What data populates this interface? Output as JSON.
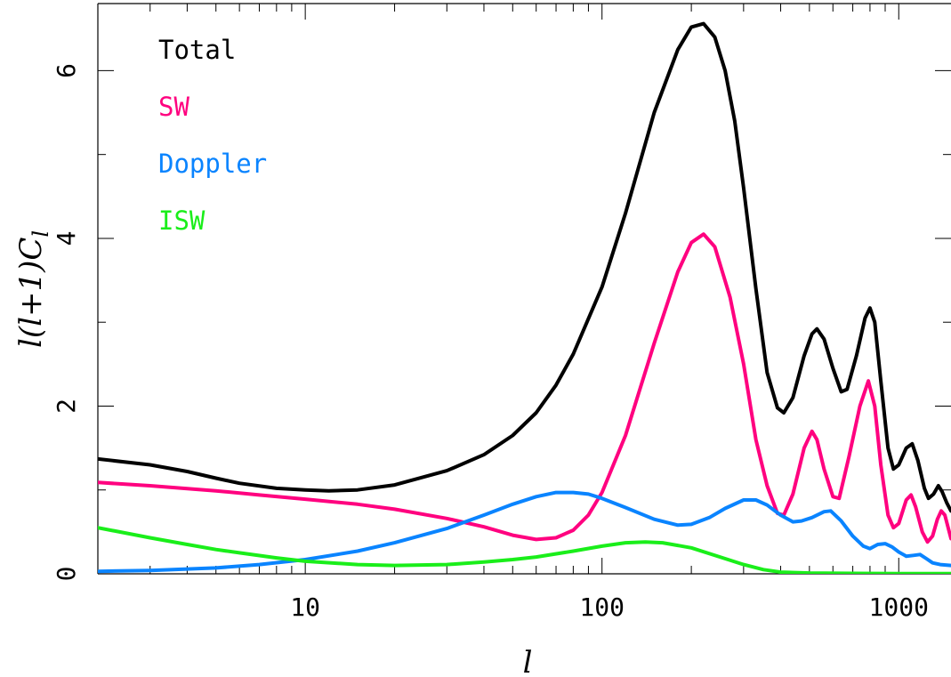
{
  "chart_data": {
    "type": "line",
    "xscale": "log",
    "xlim": [
      2,
      1500
    ],
    "ylim": [
      0,
      6.8
    ],
    "xlabel": "l",
    "ylabel": "l(l+1)C",
    "ylabel_sub": "l",
    "x_ticks": [
      {
        "value": 10,
        "label": "10"
      },
      {
        "value": 100,
        "label": "100"
      },
      {
        "value": 1000,
        "label": "1000"
      }
    ],
    "y_ticks": [
      {
        "value": 0,
        "label": "0"
      },
      {
        "value": 2,
        "label": "2"
      },
      {
        "value": 4,
        "label": "4"
      },
      {
        "value": 6,
        "label": "6"
      }
    ],
    "legend_position": "top-left",
    "series": [
      {
        "name": "Total",
        "color": "#000000",
        "points": [
          [
            2,
            1.37
          ],
          [
            3,
            1.3
          ],
          [
            4,
            1.22
          ],
          [
            5,
            1.14
          ],
          [
            6,
            1.08
          ],
          [
            8,
            1.02
          ],
          [
            10,
            1.0
          ],
          [
            12,
            0.99
          ],
          [
            15,
            1.0
          ],
          [
            20,
            1.06
          ],
          [
            30,
            1.23
          ],
          [
            40,
            1.42
          ],
          [
            50,
            1.65
          ],
          [
            60,
            1.92
          ],
          [
            70,
            2.25
          ],
          [
            80,
            2.62
          ],
          [
            100,
            3.42
          ],
          [
            120,
            4.3
          ],
          [
            150,
            5.5
          ],
          [
            180,
            6.25
          ],
          [
            200,
            6.52
          ],
          [
            220,
            6.56
          ],
          [
            240,
            6.4
          ],
          [
            260,
            6.0
          ],
          [
            280,
            5.4
          ],
          [
            300,
            4.6
          ],
          [
            330,
            3.4
          ],
          [
            360,
            2.4
          ],
          [
            390,
            1.98
          ],
          [
            410,
            1.92
          ],
          [
            440,
            2.1
          ],
          [
            480,
            2.6
          ],
          [
            510,
            2.86
          ],
          [
            530,
            2.92
          ],
          [
            560,
            2.8
          ],
          [
            600,
            2.45
          ],
          [
            640,
            2.17
          ],
          [
            670,
            2.2
          ],
          [
            720,
            2.6
          ],
          [
            770,
            3.05
          ],
          [
            800,
            3.17
          ],
          [
            830,
            3.0
          ],
          [
            870,
            2.3
          ],
          [
            920,
            1.5
          ],
          [
            960,
            1.25
          ],
          [
            1000,
            1.3
          ],
          [
            1060,
            1.5
          ],
          [
            1110,
            1.55
          ],
          [
            1160,
            1.35
          ],
          [
            1220,
            1.02
          ],
          [
            1260,
            0.9
          ],
          [
            1310,
            0.95
          ],
          [
            1360,
            1.05
          ],
          [
            1400,
            0.98
          ],
          [
            1450,
            0.85
          ],
          [
            1500,
            0.75
          ]
        ]
      },
      {
        "name": "SW",
        "color": "#ff007f",
        "points": [
          [
            2,
            1.09
          ],
          [
            3,
            1.05
          ],
          [
            5,
            0.99
          ],
          [
            7,
            0.94
          ],
          [
            10,
            0.89
          ],
          [
            15,
            0.83
          ],
          [
            20,
            0.77
          ],
          [
            30,
            0.66
          ],
          [
            40,
            0.56
          ],
          [
            50,
            0.46
          ],
          [
            60,
            0.41
          ],
          [
            70,
            0.43
          ],
          [
            80,
            0.52
          ],
          [
            90,
            0.7
          ],
          [
            100,
            0.97
          ],
          [
            120,
            1.65
          ],
          [
            150,
            2.75
          ],
          [
            180,
            3.6
          ],
          [
            200,
            3.95
          ],
          [
            220,
            4.05
          ],
          [
            240,
            3.9
          ],
          [
            270,
            3.3
          ],
          [
            300,
            2.5
          ],
          [
            330,
            1.6
          ],
          [
            360,
            1.05
          ],
          [
            390,
            0.72
          ],
          [
            410,
            0.7
          ],
          [
            440,
            0.95
          ],
          [
            480,
            1.5
          ],
          [
            510,
            1.7
          ],
          [
            530,
            1.6
          ],
          [
            560,
            1.25
          ],
          [
            600,
            0.92
          ],
          [
            630,
            0.9
          ],
          [
            680,
            1.4
          ],
          [
            740,
            2.0
          ],
          [
            790,
            2.3
          ],
          [
            830,
            2.0
          ],
          [
            870,
            1.3
          ],
          [
            920,
            0.7
          ],
          [
            960,
            0.55
          ],
          [
            1000,
            0.6
          ],
          [
            1060,
            0.88
          ],
          [
            1100,
            0.94
          ],
          [
            1140,
            0.8
          ],
          [
            1200,
            0.5
          ],
          [
            1250,
            0.38
          ],
          [
            1300,
            0.45
          ],
          [
            1350,
            0.65
          ],
          [
            1390,
            0.75
          ],
          [
            1430,
            0.7
          ],
          [
            1500,
            0.42
          ]
        ]
      },
      {
        "name": "Doppler",
        "color": "#0a84ff",
        "points": [
          [
            2,
            0.03
          ],
          [
            3,
            0.04
          ],
          [
            5,
            0.07
          ],
          [
            7,
            0.11
          ],
          [
            10,
            0.17
          ],
          [
            15,
            0.27
          ],
          [
            20,
            0.37
          ],
          [
            30,
            0.54
          ],
          [
            40,
            0.7
          ],
          [
            50,
            0.83
          ],
          [
            60,
            0.92
          ],
          [
            70,
            0.97
          ],
          [
            80,
            0.97
          ],
          [
            90,
            0.95
          ],
          [
            100,
            0.9
          ],
          [
            120,
            0.79
          ],
          [
            150,
            0.65
          ],
          [
            180,
            0.58
          ],
          [
            200,
            0.59
          ],
          [
            230,
            0.67
          ],
          [
            260,
            0.78
          ],
          [
            300,
            0.88
          ],
          [
            330,
            0.88
          ],
          [
            360,
            0.82
          ],
          [
            400,
            0.7
          ],
          [
            440,
            0.62
          ],
          [
            470,
            0.63
          ],
          [
            510,
            0.67
          ],
          [
            560,
            0.74
          ],
          [
            590,
            0.75
          ],
          [
            640,
            0.63
          ],
          [
            700,
            0.45
          ],
          [
            760,
            0.33
          ],
          [
            800,
            0.3
          ],
          [
            850,
            0.35
          ],
          [
            900,
            0.36
          ],
          [
            950,
            0.32
          ],
          [
            1000,
            0.26
          ],
          [
            1060,
            0.21
          ],
          [
            1120,
            0.22
          ],
          [
            1180,
            0.23
          ],
          [
            1240,
            0.18
          ],
          [
            1300,
            0.13
          ],
          [
            1380,
            0.11
          ],
          [
            1500,
            0.1
          ]
        ]
      },
      {
        "name": "ISW",
        "color": "#1aee1a",
        "points": [
          [
            2,
            0.55
          ],
          [
            3,
            0.43
          ],
          [
            4,
            0.35
          ],
          [
            5,
            0.29
          ],
          [
            6,
            0.25
          ],
          [
            8,
            0.19
          ],
          [
            10,
            0.15
          ],
          [
            15,
            0.11
          ],
          [
            20,
            0.1
          ],
          [
            30,
            0.11
          ],
          [
            40,
            0.14
          ],
          [
            50,
            0.17
          ],
          [
            60,
            0.2
          ],
          [
            80,
            0.27
          ],
          [
            100,
            0.33
          ],
          [
            120,
            0.37
          ],
          [
            140,
            0.38
          ],
          [
            160,
            0.37
          ],
          [
            200,
            0.31
          ],
          [
            250,
            0.2
          ],
          [
            300,
            0.11
          ],
          [
            350,
            0.05
          ],
          [
            400,
            0.02
          ],
          [
            500,
            0.01
          ],
          [
            700,
            0.005
          ],
          [
            1000,
            0.003
          ],
          [
            1500,
            0.002
          ]
        ]
      }
    ]
  }
}
